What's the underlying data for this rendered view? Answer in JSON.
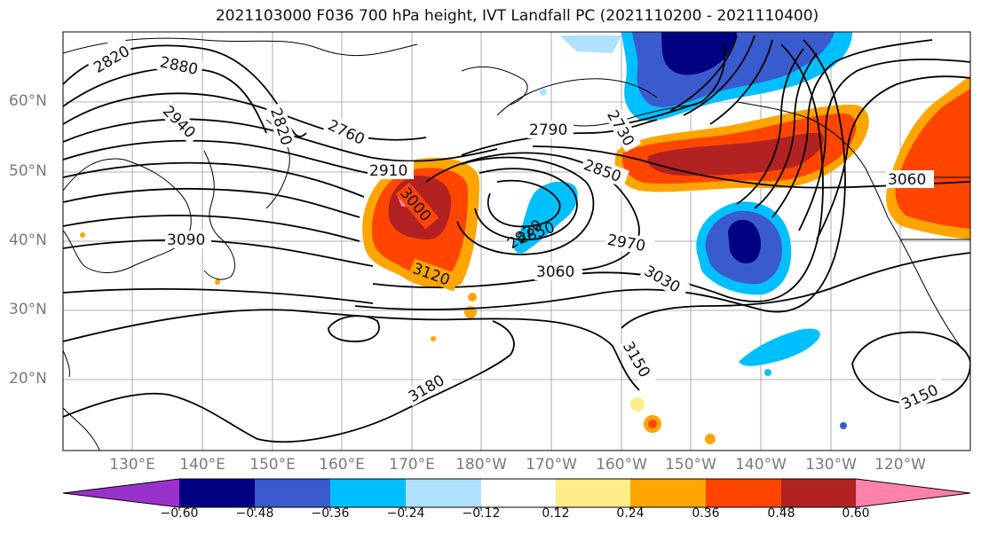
{
  "title": "2021103000 F036 700 hPa height, IVT Landfall PC (2021110200 - 2021110400)",
  "lat_labels": [
    "60°N",
    "50°N",
    "40°N",
    "30°N",
    "20°N"
  ],
  "lon_labels": [
    "130°E",
    "140°E",
    "150°E",
    "160°E",
    "170°E",
    "180°W",
    "170°W",
    "160°W",
    "150°W",
    "140°W",
    "130°W",
    "120°W"
  ],
  "contour_labels": [
    "2820",
    "2880",
    "2940",
    "2820",
    "2760",
    "2790",
    "2730",
    "2850",
    "2910",
    "3000",
    "3090",
    "2820",
    "2850",
    "2970",
    "3060",
    "3030",
    "3120",
    "3060",
    "3150",
    "3180",
    "3150"
  ],
  "colorbar": {
    "ticks": [
      "−0.60",
      "−0.48",
      "−0.36",
      "−0.24",
      "−0.12",
      "0.12",
      "0.24",
      "0.36",
      "0.48",
      "0.60"
    ],
    "colors": [
      "#9932cc",
      "#000080",
      "#3a5bcd",
      "#00bfff",
      "#b0e2ff",
      "#ffffff",
      "#ffec8b",
      "#ffa500",
      "#ff4500",
      "#b22222",
      "#ff82ab"
    ]
  }
}
